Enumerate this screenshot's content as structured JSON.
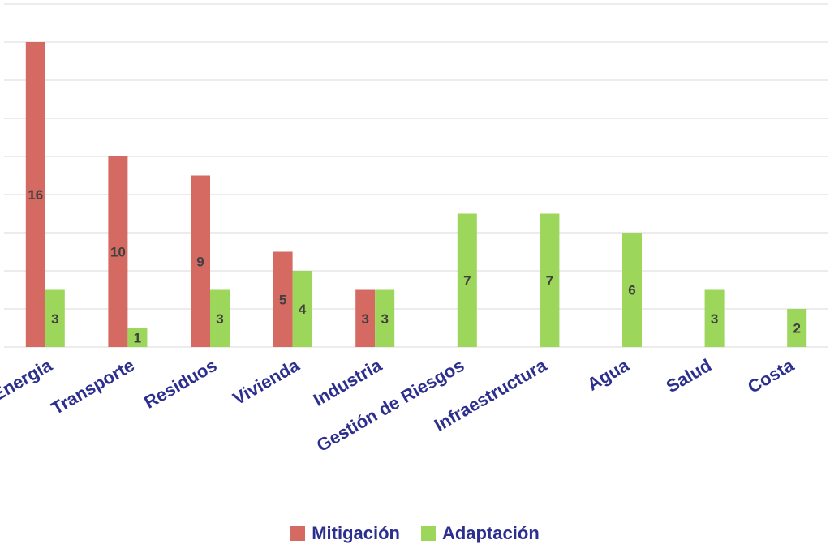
{
  "chart_data": {
    "type": "bar",
    "categories": [
      "Energia",
      "Transporte",
      "Residuos",
      "Vivienda",
      "Industria",
      "Gestión de Riesgos",
      "Infraestructura",
      "Agua",
      "Salud",
      "Costa"
    ],
    "series": [
      {
        "name": "Mitigación",
        "color": "#d46a62",
        "values": [
          16,
          10,
          9,
          5,
          3,
          null,
          null,
          null,
          null,
          null
        ],
        "labels": [
          "16",
          "10",
          "9",
          "5",
          "3",
          "",
          "",
          "",
          "",
          ""
        ]
      },
      {
        "name": "Adaptación",
        "color": "#9cd65a",
        "values": [
          3,
          1,
          3,
          4,
          3,
          7,
          7,
          6,
          3,
          2
        ],
        "labels": [
          "3",
          "1",
          "3",
          "4",
          "3",
          "7",
          "7",
          "6",
          "3",
          "2"
        ]
      }
    ],
    "ylim": [
      0,
      18
    ],
    "gridlines_every": 2,
    "grid": true,
    "legend_position": "bottom",
    "colors": {
      "text": "#2d2f8e",
      "data_label": "#404040",
      "grid": "#d9d9d9"
    }
  },
  "legend": {
    "mitigacion_label": "Mitigación",
    "adaptacion_label": "Adaptación"
  }
}
